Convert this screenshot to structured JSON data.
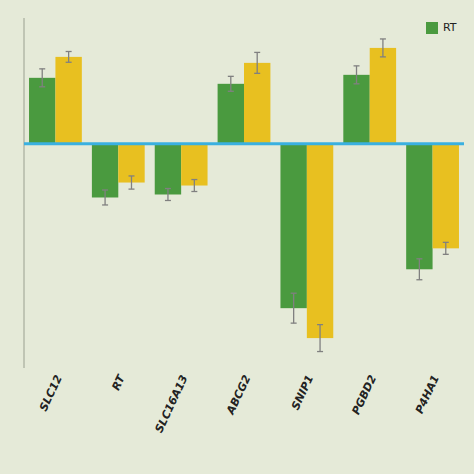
{
  "chart_data": {
    "type": "bar",
    "categories": [
      "SLC12",
      "RT",
      "SLC16A13",
      "ABCG2",
      "SNIP1",
      "PGBD2",
      "P4HA1"
    ],
    "series": [
      {
        "name": "RT",
        "color": "#4a9a3f",
        "values": [
          2.2,
          -1.8,
          -1.7,
          2.0,
          -5.5,
          2.3,
          -4.2
        ],
        "errors": [
          0.3,
          0.25,
          0.2,
          0.25,
          0.5,
          0.3,
          0.35
        ]
      },
      {
        "color": "#e8c020",
        "values": [
          2.9,
          -1.3,
          -1.4,
          2.7,
          -6.5,
          3.2,
          -3.5
        ],
        "errors": [
          0.18,
          0.22,
          0.2,
          0.35,
          0.45,
          0.3,
          0.2
        ]
      }
    ],
    "ylim": [
      -7.5,
      4.2
    ],
    "legend": "upper right",
    "tick_labels": "x",
    "grid": false
  }
}
